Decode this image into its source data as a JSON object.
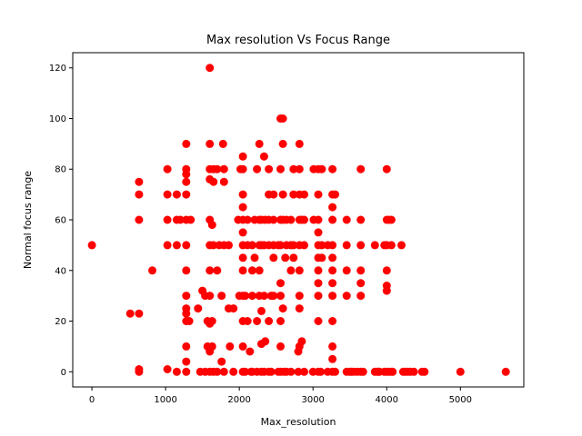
{
  "chart_data": {
    "type": "scatter",
    "title": "Max resolution Vs Focus Range",
    "xlabel": "Max_resolution",
    "ylabel": "Normal focus range",
    "xlim": [
      -260,
      5860
    ],
    "ylim": [
      -6,
      126
    ],
    "xticks": [
      0,
      1000,
      2000,
      3000,
      4000,
      5000
    ],
    "yticks": [
      0,
      20,
      40,
      60,
      80,
      100,
      120
    ],
    "grid": false,
    "legend": "none",
    "marker_color": "#ff0000",
    "series": [
      {
        "points": [
          [
            0,
            50
          ],
          [
            520,
            23
          ],
          [
            640,
            23
          ],
          [
            640,
            60
          ],
          [
            640,
            70
          ],
          [
            640,
            75
          ],
          [
            640,
            0
          ],
          [
            640,
            1
          ],
          [
            820,
            40
          ],
          [
            1024,
            50
          ],
          [
            1024,
            60
          ],
          [
            1024,
            70
          ],
          [
            1024,
            80
          ],
          [
            1024,
            1
          ],
          [
            1152,
            0
          ],
          [
            1152,
            50
          ],
          [
            1152,
            60
          ],
          [
            1152,
            70
          ],
          [
            1200,
            60
          ],
          [
            1280,
            0
          ],
          [
            1280,
            4
          ],
          [
            1280,
            10
          ],
          [
            1280,
            20
          ],
          [
            1280,
            23
          ],
          [
            1280,
            25
          ],
          [
            1280,
            30
          ],
          [
            1280,
            40
          ],
          [
            1280,
            50
          ],
          [
            1280,
            60
          ],
          [
            1280,
            70
          ],
          [
            1280,
            75
          ],
          [
            1280,
            78
          ],
          [
            1280,
            80
          ],
          [
            1280,
            90
          ],
          [
            1320,
            20
          ],
          [
            1340,
            60
          ],
          [
            1440,
            25
          ],
          [
            1470,
            0
          ],
          [
            1500,
            32
          ],
          [
            1536,
            0
          ],
          [
            1536,
            30
          ],
          [
            1568,
            10
          ],
          [
            1568,
            20
          ],
          [
            1600,
            0
          ],
          [
            1600,
            8
          ],
          [
            1600,
            19
          ],
          [
            1600,
            30
          ],
          [
            1600,
            40
          ],
          [
            1600,
            50
          ],
          [
            1600,
            60
          ],
          [
            1600,
            76
          ],
          [
            1600,
            80
          ],
          [
            1600,
            90
          ],
          [
            1600,
            120
          ],
          [
            1632,
            10
          ],
          [
            1632,
            20
          ],
          [
            1632,
            58
          ],
          [
            1648,
            0
          ],
          [
            1648,
            50
          ],
          [
            1650,
            75
          ],
          [
            1650,
            80
          ],
          [
            1700,
            0
          ],
          [
            1700,
            40
          ],
          [
            1700,
            80
          ],
          [
            1728,
            50
          ],
          [
            1760,
            4
          ],
          [
            1760,
            30
          ],
          [
            1780,
            90
          ],
          [
            1792,
            0
          ],
          [
            1792,
            50
          ],
          [
            1792,
            75
          ],
          [
            1792,
            80
          ],
          [
            1856,
            25
          ],
          [
            1856,
            50
          ],
          [
            1872,
            10
          ],
          [
            1920,
            0
          ],
          [
            1920,
            25
          ],
          [
            1984,
            60
          ],
          [
            2000,
            30
          ],
          [
            2016,
            80
          ],
          [
            2048,
            0
          ],
          [
            2048,
            10
          ],
          [
            2048,
            20
          ],
          [
            2048,
            30
          ],
          [
            2048,
            40
          ],
          [
            2048,
            45
          ],
          [
            2048,
            50
          ],
          [
            2048,
            55
          ],
          [
            2048,
            60
          ],
          [
            2048,
            65
          ],
          [
            2048,
            70
          ],
          [
            2048,
            80
          ],
          [
            2048,
            85
          ],
          [
            2080,
            0
          ],
          [
            2080,
            30
          ],
          [
            2112,
            20
          ],
          [
            2112,
            50
          ],
          [
            2112,
            60
          ],
          [
            2144,
            8
          ],
          [
            2160,
            0
          ],
          [
            2176,
            0
          ],
          [
            2176,
            30
          ],
          [
            2176,
            40
          ],
          [
            2176,
            50
          ],
          [
            2208,
            45
          ],
          [
            2208,
            60
          ],
          [
            2240,
            0
          ],
          [
            2240,
            20
          ],
          [
            2240,
            80
          ],
          [
            2272,
            30
          ],
          [
            2272,
            40
          ],
          [
            2272,
            50
          ],
          [
            2272,
            60
          ],
          [
            2272,
            90
          ],
          [
            2300,
            0
          ],
          [
            2300,
            11
          ],
          [
            2300,
            24
          ],
          [
            2304,
            50
          ],
          [
            2304,
            60
          ],
          [
            2336,
            0
          ],
          [
            2336,
            30
          ],
          [
            2336,
            50
          ],
          [
            2336,
            85
          ],
          [
            2352,
            12
          ],
          [
            2352,
            60
          ],
          [
            2400,
            0
          ],
          [
            2400,
            20
          ],
          [
            2400,
            50
          ],
          [
            2400,
            60
          ],
          [
            2400,
            70
          ],
          [
            2400,
            80
          ],
          [
            2432,
            0
          ],
          [
            2432,
            30
          ],
          [
            2464,
            30
          ],
          [
            2464,
            45
          ],
          [
            2464,
            50
          ],
          [
            2464,
            60
          ],
          [
            2464,
            70
          ],
          [
            2528,
            0
          ],
          [
            2528,
            50
          ],
          [
            2560,
            0
          ],
          [
            2560,
            10
          ],
          [
            2560,
            20
          ],
          [
            2560,
            30
          ],
          [
            2560,
            35
          ],
          [
            2560,
            50
          ],
          [
            2560,
            60
          ],
          [
            2560,
            80
          ],
          [
            2560,
            100
          ],
          [
            2592,
            25
          ],
          [
            2592,
            60
          ],
          [
            2592,
            70
          ],
          [
            2592,
            100
          ],
          [
            2592,
            90
          ],
          [
            2608,
            0
          ],
          [
            2624,
            45
          ],
          [
            2640,
            0
          ],
          [
            2640,
            50
          ],
          [
            2640,
            60
          ],
          [
            2700,
            0
          ],
          [
            2700,
            40
          ],
          [
            2700,
            50
          ],
          [
            2700,
            60
          ],
          [
            2736,
            45
          ],
          [
            2736,
            50
          ],
          [
            2736,
            70
          ],
          [
            2736,
            80
          ],
          [
            2800,
            0
          ],
          [
            2800,
            8
          ],
          [
            2816,
            10
          ],
          [
            2816,
            25
          ],
          [
            2816,
            30
          ],
          [
            2816,
            40
          ],
          [
            2816,
            50
          ],
          [
            2816,
            60
          ],
          [
            2816,
            70
          ],
          [
            2816,
            80
          ],
          [
            2816,
            90
          ],
          [
            2848,
            12
          ],
          [
            2848,
            60
          ],
          [
            2880,
            0
          ],
          [
            2880,
            50
          ],
          [
            2880,
            60
          ],
          [
            2880,
            70
          ],
          [
            3000,
            0
          ],
          [
            3008,
            60
          ],
          [
            3008,
            80
          ],
          [
            3072,
            0
          ],
          [
            3072,
            20
          ],
          [
            3072,
            30
          ],
          [
            3072,
            35
          ],
          [
            3072,
            40
          ],
          [
            3072,
            45
          ],
          [
            3072,
            50
          ],
          [
            3072,
            55
          ],
          [
            3072,
            60
          ],
          [
            3072,
            70
          ],
          [
            3072,
            80
          ],
          [
            3104,
            0
          ],
          [
            3120,
            45
          ],
          [
            3120,
            50
          ],
          [
            3120,
            80
          ],
          [
            3200,
            0
          ],
          [
            3200,
            50
          ],
          [
            3264,
            0
          ],
          [
            3264,
            5
          ],
          [
            3264,
            10
          ],
          [
            3264,
            20
          ],
          [
            3264,
            30
          ],
          [
            3264,
            35
          ],
          [
            3264,
            40
          ],
          [
            3264,
            45
          ],
          [
            3264,
            50
          ],
          [
            3264,
            60
          ],
          [
            3264,
            65
          ],
          [
            3264,
            70
          ],
          [
            3264,
            80
          ],
          [
            3300,
            0
          ],
          [
            3300,
            70
          ],
          [
            3456,
            0
          ],
          [
            3456,
            30
          ],
          [
            3456,
            40
          ],
          [
            3456,
            50
          ],
          [
            3456,
            60
          ],
          [
            3500,
            0
          ],
          [
            3520,
            0
          ],
          [
            3552,
            0
          ],
          [
            3600,
            0
          ],
          [
            3648,
            0
          ],
          [
            3648,
            30
          ],
          [
            3648,
            35
          ],
          [
            3648,
            40
          ],
          [
            3648,
            50
          ],
          [
            3648,
            60
          ],
          [
            3648,
            80
          ],
          [
            3680,
            0
          ],
          [
            3840,
            0
          ],
          [
            3840,
            50
          ],
          [
            3872,
            0
          ],
          [
            3888,
            0
          ],
          [
            3900,
            0
          ],
          [
            3968,
            0
          ],
          [
            3968,
            50
          ],
          [
            4000,
            0
          ],
          [
            4000,
            32
          ],
          [
            4000,
            34
          ],
          [
            4000,
            40
          ],
          [
            4000,
            50
          ],
          [
            4000,
            60
          ],
          [
            4000,
            80
          ],
          [
            4032,
            0
          ],
          [
            4032,
            60
          ],
          [
            4064,
            0
          ],
          [
            4064,
            50
          ],
          [
            4064,
            60
          ],
          [
            4080,
            0
          ],
          [
            4200,
            50
          ],
          [
            4224,
            0
          ],
          [
            4256,
            0
          ],
          [
            4288,
            0
          ],
          [
            4320,
            0
          ],
          [
            4368,
            0
          ],
          [
            4480,
            0
          ],
          [
            4512,
            0
          ],
          [
            5000,
            0
          ],
          [
            5616,
            0
          ]
        ]
      }
    ]
  }
}
